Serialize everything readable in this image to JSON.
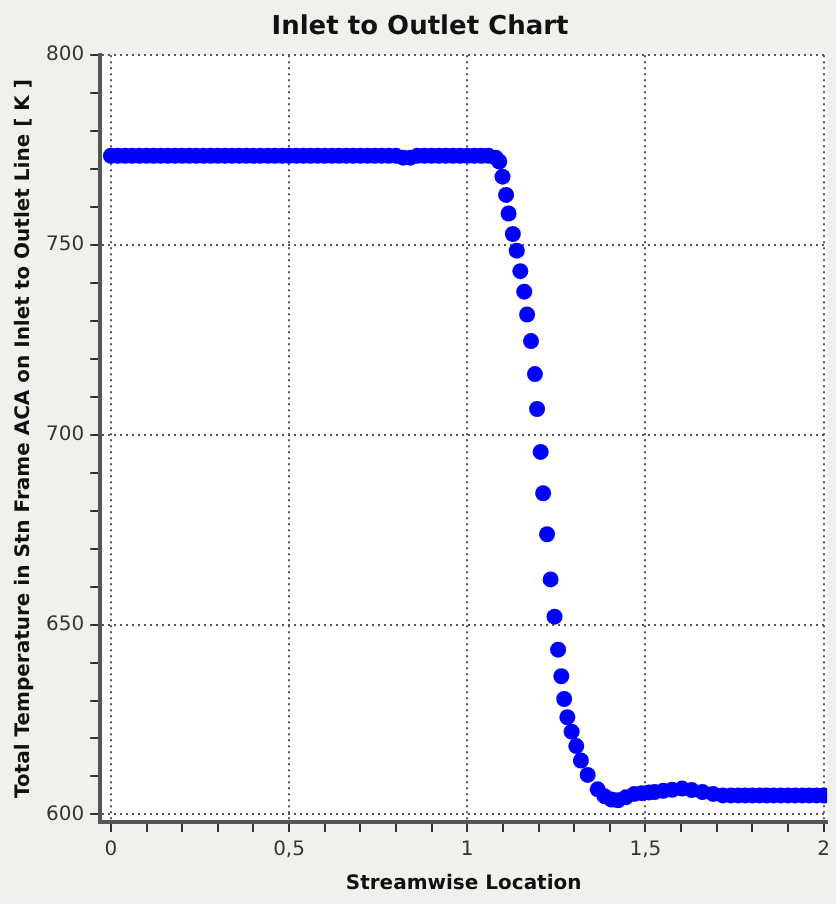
{
  "chart_data": {
    "type": "scatter",
    "title": "Inlet to Outlet Chart",
    "xlabel": "Streamwise Location",
    "ylabel": "Total Temperature in Stn Frame ACA on Inlet to Outlet Line [ K ]",
    "xlim": [
      -0.03,
      2.01
    ],
    "xticks": [
      {
        "value": 0,
        "label": "0"
      },
      {
        "value": 0.1,
        "label": null
      },
      {
        "value": 0.2,
        "label": null
      },
      {
        "value": 0.3,
        "label": null
      },
      {
        "value": 0.4,
        "label": null
      },
      {
        "value": 0.5,
        "label": "0,5"
      },
      {
        "value": 0.6,
        "label": null
      },
      {
        "value": 0.7,
        "label": null
      },
      {
        "value": 0.8,
        "label": null
      },
      {
        "value": 0.9,
        "label": null
      },
      {
        "value": 1,
        "label": "1"
      },
      {
        "value": 1.1,
        "label": null
      },
      {
        "value": 1.2,
        "label": null
      },
      {
        "value": 1.3,
        "label": null
      },
      {
        "value": 1.4,
        "label": null
      },
      {
        "value": 1.5,
        "label": "1,5"
      },
      {
        "value": 1.6,
        "label": null
      },
      {
        "value": 1.7,
        "label": null
      },
      {
        "value": 1.8,
        "label": null
      },
      {
        "value": 1.9,
        "label": null
      },
      {
        "value": 2,
        "label": "2"
      }
    ],
    "ylim": [
      598,
      800
    ],
    "yticks": [
      {
        "value": 600,
        "label": "600"
      },
      {
        "value": 610,
        "label": null
      },
      {
        "value": 620,
        "label": null
      },
      {
        "value": 630,
        "label": null
      },
      {
        "value": 640,
        "label": null
      },
      {
        "value": 650,
        "label": "650"
      },
      {
        "value": 660,
        "label": null
      },
      {
        "value": 670,
        "label": null
      },
      {
        "value": 680,
        "label": null
      },
      {
        "value": 690,
        "label": null
      },
      {
        "value": 700,
        "label": "700"
      },
      {
        "value": 710,
        "label": null
      },
      {
        "value": 720,
        "label": null
      },
      {
        "value": 730,
        "label": null
      },
      {
        "value": 740,
        "label": null
      },
      {
        "value": 750,
        "label": "750"
      },
      {
        "value": 760,
        "label": null
      },
      {
        "value": 770,
        "label": null
      },
      {
        "value": 780,
        "label": null
      },
      {
        "value": 790,
        "label": null
      },
      {
        "value": 800,
        "label": "800"
      }
    ],
    "grid": true,
    "legend": false,
    "marker": "circle",
    "series": [
      {
        "color": "#0000ff",
        "x": [
          0,
          0.02,
          0.04,
          0.06,
          0.08,
          0.1,
          0.12,
          0.14,
          0.16,
          0.18,
          0.2,
          0.22,
          0.24,
          0.26,
          0.28,
          0.3,
          0.32,
          0.34,
          0.36,
          0.38,
          0.4,
          0.42,
          0.44,
          0.46,
          0.48,
          0.5,
          0.52,
          0.54,
          0.56,
          0.58,
          0.6,
          0.62,
          0.64,
          0.66,
          0.68,
          0.7,
          0.72,
          0.74,
          0.76,
          0.78,
          0.8,
          0.82,
          0.84,
          0.86,
          0.88,
          0.9,
          0.92,
          0.94,
          0.96,
          0.98,
          1.0,
          1.02,
          1.04,
          1.06,
          1.08,
          1.09,
          1.099,
          1.109,
          1.116,
          1.128,
          1.139,
          1.149,
          1.16,
          1.168,
          1.179,
          1.19,
          1.196,
          1.206,
          1.213,
          1.224,
          1.234,
          1.245,
          1.255,
          1.264,
          1.272,
          1.281,
          1.293,
          1.306,
          1.319,
          1.338,
          1.366,
          1.385,
          1.405,
          1.423,
          1.445,
          1.469,
          1.49,
          1.51,
          1.526,
          1.55,
          1.575,
          1.603,
          1.63,
          1.66,
          1.69,
          1.717,
          1.74,
          1.76,
          1.78,
          1.8,
          1.82,
          1.84,
          1.86,
          1.88,
          1.9,
          1.92,
          1.94,
          1.96,
          1.98,
          2.0
        ],
        "values": [
          773.5,
          773.5,
          773.5,
          773.5,
          773.5,
          773.5,
          773.5,
          773.5,
          773.5,
          773.5,
          773.5,
          773.5,
          773.5,
          773.5,
          773.5,
          773.5,
          773.5,
          773.5,
          773.5,
          773.5,
          773.5,
          773.5,
          773.5,
          773.5,
          773.5,
          773.5,
          773.5,
          773.5,
          773.5,
          773.5,
          773.5,
          773.5,
          773.5,
          773.5,
          773.5,
          773.5,
          773.5,
          773.5,
          773.5,
          773.5,
          773.5,
          773,
          773,
          773.5,
          773.5,
          773.5,
          773.5,
          773.5,
          773.5,
          773.5,
          773.5,
          773.5,
          773.5,
          773.5,
          773,
          772,
          768,
          763.2,
          758.3,
          752.9,
          748.5,
          743.1,
          737.7,
          731.7,
          724.7,
          716,
          706.8,
          695.5,
          684.6,
          673.8,
          661.9,
          652.1,
          643.4,
          636.4,
          630.4,
          625.6,
          621.8,
          618,
          614.2,
          610.4,
          606.6,
          604.8,
          603.9,
          603.7,
          604.5,
          605.4,
          605.6,
          605.8,
          605.9,
          606.2,
          606.5,
          606.8,
          606.4,
          605.9,
          605.4,
          605,
          605,
          605,
          605,
          605,
          605,
          605,
          605,
          605,
          605,
          605,
          605,
          605,
          605,
          605
        ]
      }
    ]
  }
}
